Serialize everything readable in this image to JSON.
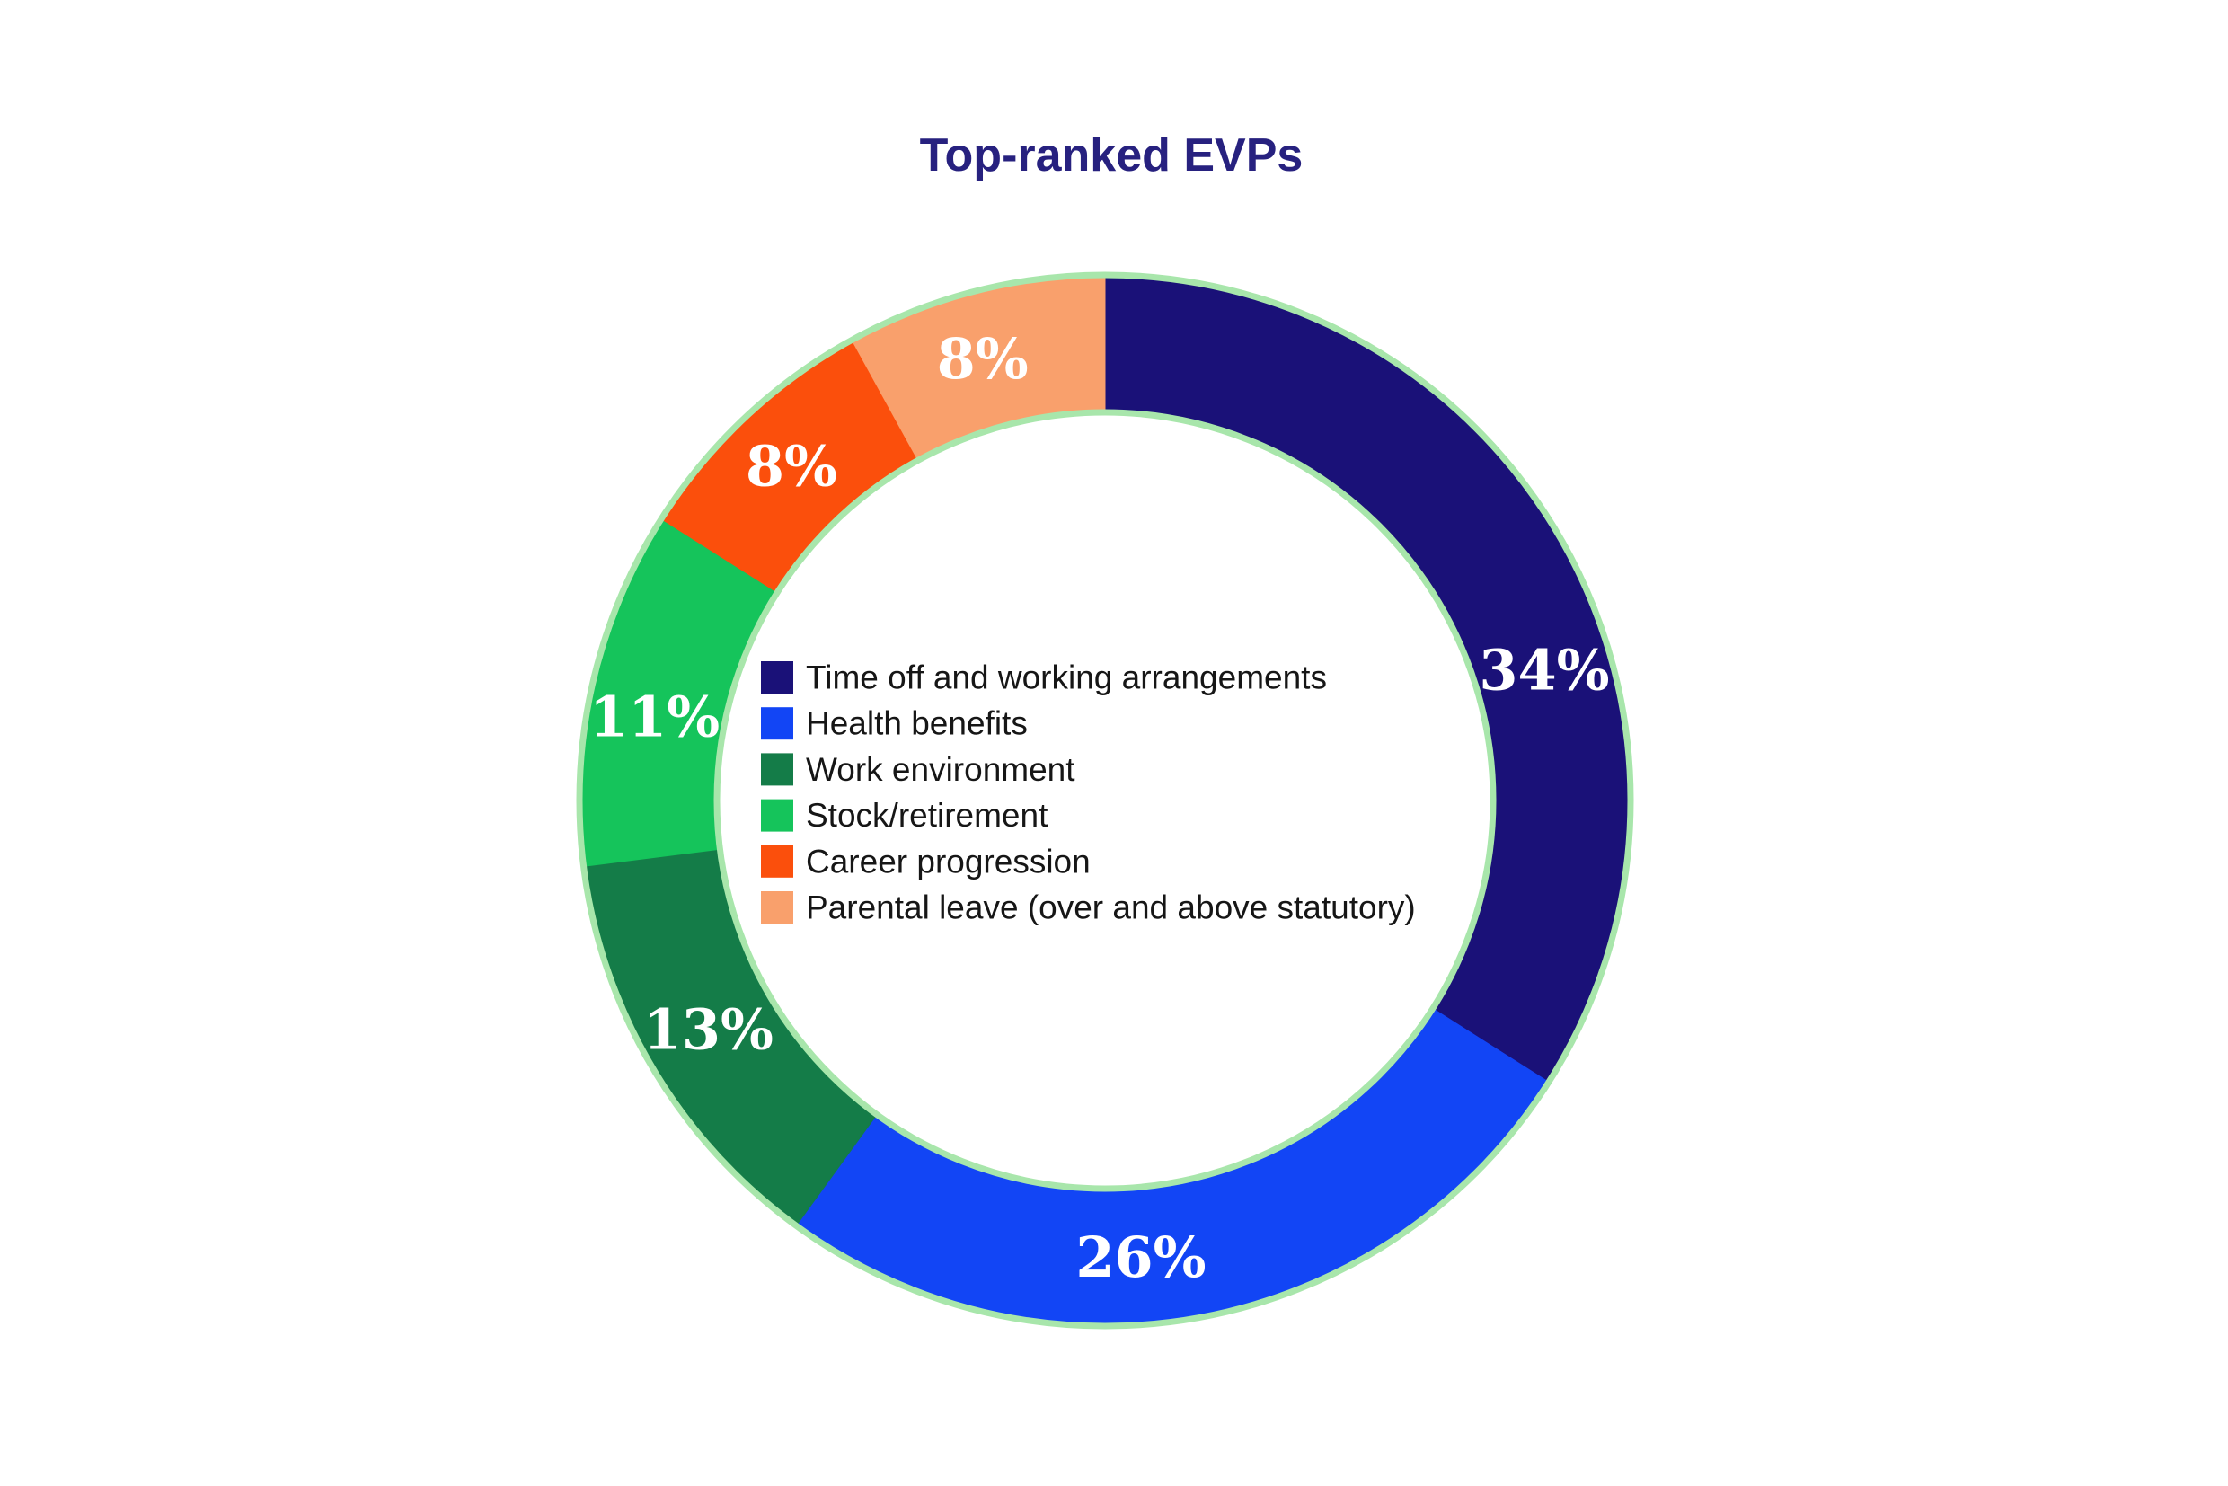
{
  "title": "Top-ranked EVPs",
  "chart_data": {
    "type": "pie",
    "subtype": "donut",
    "title": "Top-ranked EVPs",
    "title_color": "#27217f",
    "units": "%",
    "start_angle_deg": 0,
    "direction": "clockwise",
    "ring_outline_color": "#a8e6ab",
    "slice_label_color": "#ffffff",
    "legend_position": "inside-center",
    "legend_text_color": "#161616",
    "background_color": "#ffffff",
    "series": [
      {
        "label": "Time off and working arrangements",
        "value": 34,
        "display": "34%",
        "color": "#1a1178",
        "label_angle_deg": 73.5
      },
      {
        "label": "Health benefits",
        "value": 26,
        "display": "26%",
        "color": "#1245f5",
        "label_angle_deg": 175.5
      },
      {
        "label": "Work environment",
        "value": 13,
        "display": "13%",
        "color": "#147c48",
        "label_angle_deg": 240.0
      },
      {
        "label": "Stock/retirement",
        "value": 11,
        "display": "11%",
        "color": "#15c45b",
        "label_angle_deg": 280.5
      },
      {
        "label": "Career progression",
        "value": 8,
        "display": "8%",
        "color": "#fb4f0c",
        "label_angle_deg": 316.8
      },
      {
        "label": "Parental leave (over and above statutory)",
        "value": 8,
        "display": "8%",
        "color": "#f9a06c",
        "label_angle_deg": 344.5
      }
    ]
  }
}
